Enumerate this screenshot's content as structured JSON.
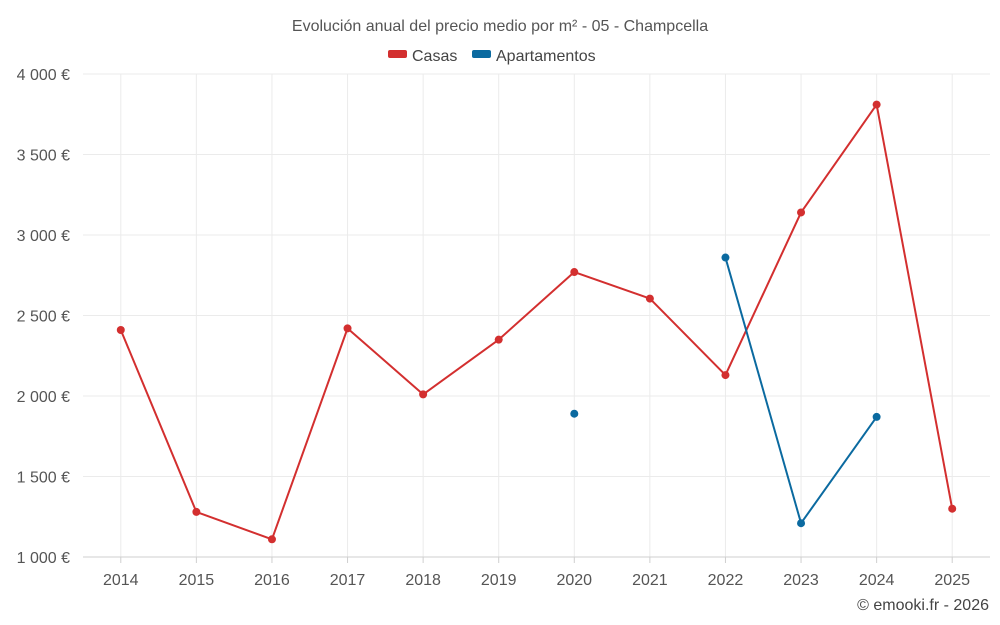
{
  "chart_data": {
    "type": "line",
    "title": "Evolución anual del precio medio por m² - 05 - Champcella",
    "categories": [
      "2014",
      "2015",
      "2016",
      "2017",
      "2018",
      "2019",
      "2020",
      "2021",
      "2022",
      "2023",
      "2024",
      "2025"
    ],
    "ylim": [
      1000,
      4000
    ],
    "yticks": [
      1000,
      1500,
      2000,
      2500,
      3000,
      3500,
      4000
    ],
    "ytick_labels": [
      "1 000 €",
      "1 500 €",
      "2 000 €",
      "2 500 €",
      "3 000 €",
      "3 500 €",
      "4 000 €"
    ],
    "xlabel": "",
    "ylabel": "",
    "grid": true,
    "legend_position": "top-center",
    "series": [
      {
        "name": "Casas",
        "color": "#d32f2f",
        "values": [
          2410,
          1280,
          1110,
          2420,
          2010,
          2350,
          2770,
          2605,
          2130,
          3140,
          3810,
          1300
        ]
      },
      {
        "name": "Apartamentos",
        "color": "#0b6aa0",
        "values": [
          null,
          null,
          null,
          null,
          null,
          null,
          1890,
          null,
          2860,
          1210,
          1870,
          null
        ]
      }
    ]
  },
  "credit": "© emooki.fr - 2026"
}
